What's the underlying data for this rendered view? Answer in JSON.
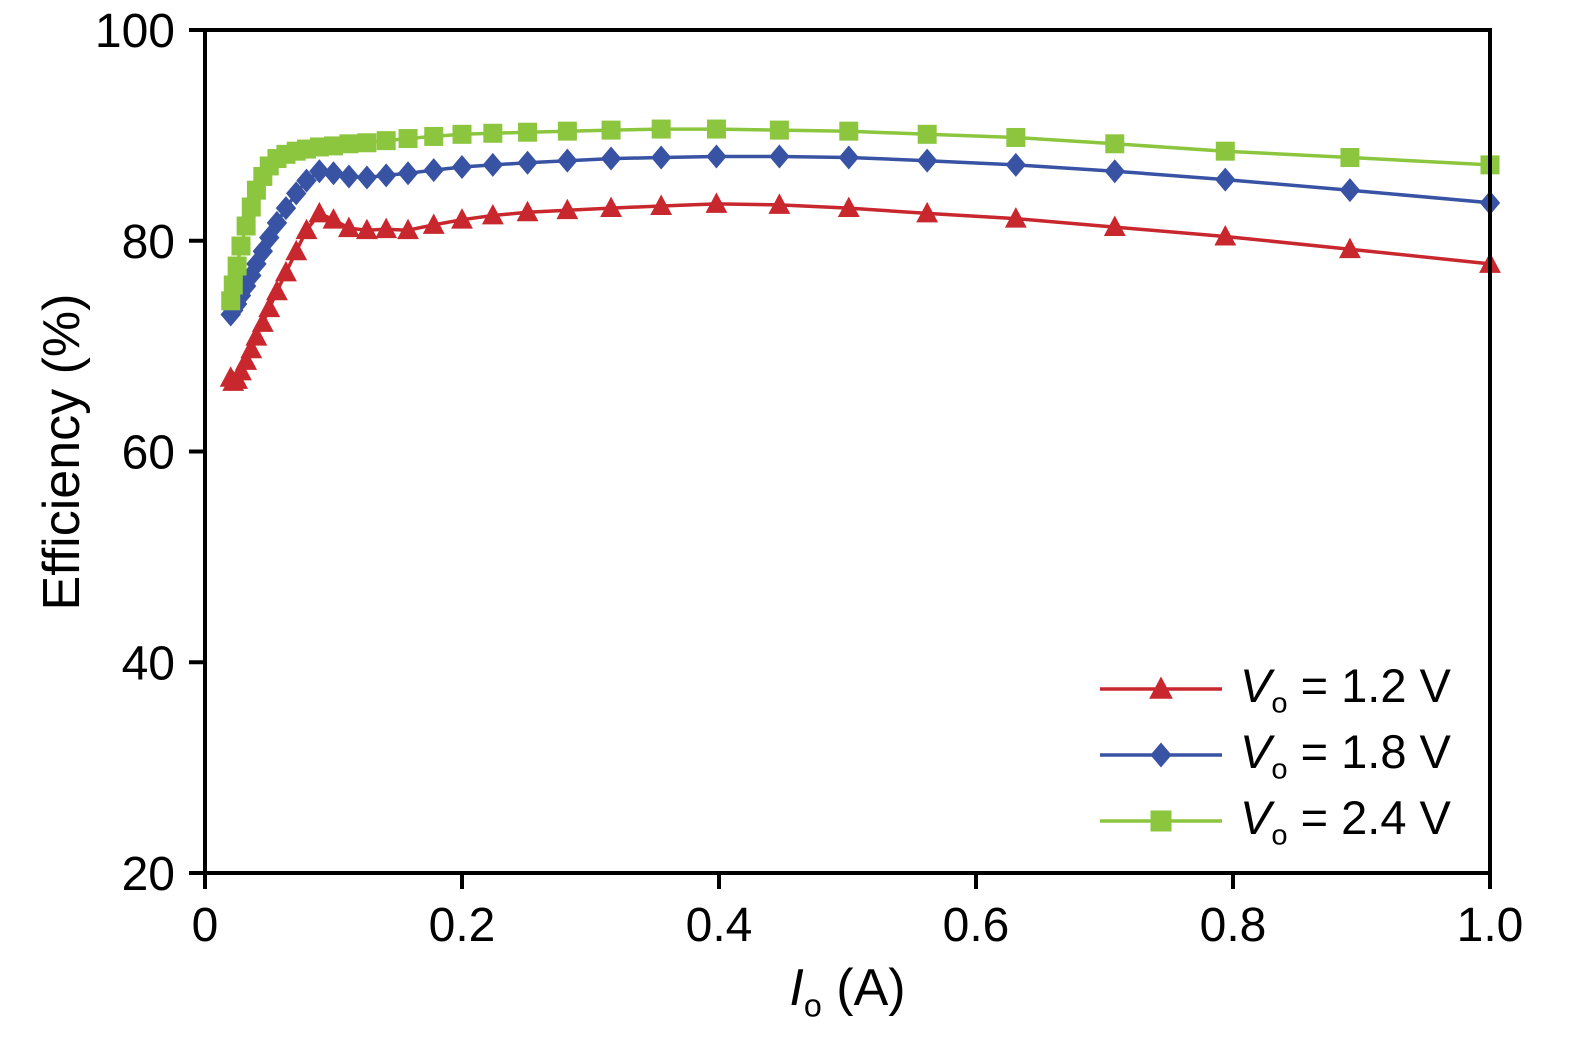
{
  "figure": {
    "background": "#ffffff",
    "axis_color": "#000000"
  },
  "chart_data": {
    "type": "line",
    "title": "",
    "xlabel": {
      "var": "I",
      "sub": "o",
      "rest": " (A)"
    },
    "ylabel": "Efficiency (%)",
    "xlim": [
      0,
      1.0
    ],
    "ylim": [
      20,
      100
    ],
    "xticks": [
      0,
      0.2,
      0.4,
      0.6,
      0.8,
      1.0
    ],
    "xtick_labels": [
      "0",
      "0.2",
      "0.4",
      "0.6",
      "0.8",
      "1.0"
    ],
    "yticks": [
      20,
      40,
      60,
      80,
      100
    ],
    "ytick_labels": [
      "20",
      "40",
      "60",
      "80",
      "100"
    ],
    "grid": false,
    "legend_position": "lower right",
    "x": [
      0.02,
      0.022,
      0.025,
      0.028,
      0.032,
      0.036,
      0.04,
      0.045,
      0.05,
      0.056,
      0.063,
      0.071,
      0.079,
      0.089,
      0.1,
      0.112,
      0.126,
      0.141,
      0.158,
      0.178,
      0.2,
      0.224,
      0.251,
      0.282,
      0.316,
      0.355,
      0.398,
      0.447,
      0.501,
      0.562,
      0.631,
      0.708,
      0.794,
      0.891,
      1.0
    ],
    "series": [
      {
        "label": "V_o = 1.2 V",
        "name_var": "V",
        "name_sub": "o",
        "name_rest": " = 1.2 V",
        "color": "#C8272D",
        "marker": "triangle",
        "values": [
          67.0,
          66.6,
          66.8,
          67.6,
          68.6,
          69.7,
          70.9,
          72.2,
          73.6,
          75.2,
          77.0,
          79.0,
          81.0,
          82.6,
          82.0,
          81.2,
          81.0,
          81.1,
          81.0,
          81.5,
          82.0,
          82.4,
          82.7,
          82.9,
          83.1,
          83.3,
          83.5,
          83.4,
          83.1,
          82.6,
          82.1,
          81.3,
          80.4,
          79.2,
          77.8
        ]
      },
      {
        "label": "V_o = 1.8 V",
        "name_var": "V",
        "name_sub": "o",
        "name_rest": " = 1.8 V",
        "color": "#3953A4",
        "marker": "diamond",
        "values": [
          73.0,
          73.4,
          74.0,
          74.8,
          75.7,
          76.7,
          77.8,
          79.0,
          80.3,
          81.7,
          83.1,
          84.5,
          85.7,
          86.6,
          86.4,
          86.1,
          86.0,
          86.2,
          86.4,
          86.7,
          87.0,
          87.2,
          87.4,
          87.6,
          87.8,
          87.9,
          88.0,
          88.0,
          87.9,
          87.6,
          87.2,
          86.6,
          85.8,
          84.8,
          83.6
        ]
      },
      {
        "label": "V_o = 2.4 V",
        "name_var": "V",
        "name_sub": "o",
        "name_rest": " = 2.4 V",
        "color": "#8CC63F",
        "marker": "square",
        "values": [
          74.3,
          75.8,
          77.6,
          79.5,
          81.4,
          83.2,
          84.8,
          86.1,
          87.1,
          87.8,
          88.2,
          88.5,
          88.7,
          88.9,
          89.0,
          89.2,
          89.3,
          89.5,
          89.7,
          89.9,
          90.1,
          90.2,
          90.3,
          90.4,
          90.5,
          90.6,
          90.6,
          90.5,
          90.4,
          90.1,
          89.8,
          89.2,
          88.5,
          87.9,
          87.2
        ]
      }
    ]
  }
}
